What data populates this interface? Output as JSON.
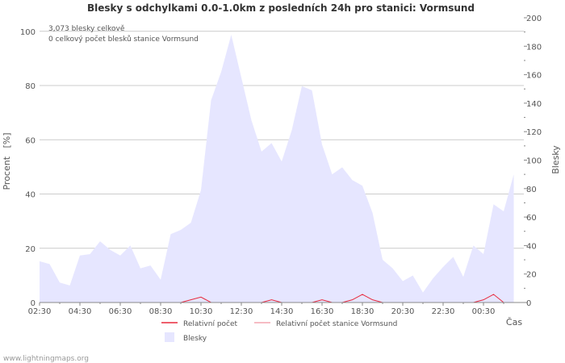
{
  "chart_data": {
    "type": "area",
    "title": "Blesky s odchylkami 0.0-1.0km z posledních 24h pro stanici: Vormsund",
    "annotations": [
      "3,073 blesky celkově",
      "0 celkový počet blesků stanice Vormsund"
    ],
    "left_axis": {
      "label": "Procent   [%]",
      "range": [
        0,
        105
      ],
      "ticks": [
        0,
        20,
        40,
        60,
        80,
        100
      ]
    },
    "right_axis": {
      "label": "Blesky",
      "range": [
        0,
        200
      ],
      "ticks": [
        0,
        20,
        40,
        60,
        80,
        100,
        120,
        140,
        160,
        180,
        200
      ]
    },
    "x_axis": {
      "label": "Čas",
      "range": [
        0,
        48
      ],
      "ticks": [
        {
          "x": 0,
          "label": "02:30"
        },
        {
          "x": 4,
          "label": "04:30"
        },
        {
          "x": 8,
          "label": "06:30"
        },
        {
          "x": 12,
          "label": "08:30"
        },
        {
          "x": 16,
          "label": "10:30"
        },
        {
          "x": 20,
          "label": "12:30"
        },
        {
          "x": 24,
          "label": "14:30"
        },
        {
          "x": 28,
          "label": "16:30"
        },
        {
          "x": 32,
          "label": "18:30"
        },
        {
          "x": 36,
          "label": "20:30"
        },
        {
          "x": 40,
          "label": "22:30"
        },
        {
          "x": 44,
          "label": "00:30"
        }
      ]
    },
    "series": [
      {
        "name": "Blesky",
        "axis": "right",
        "style": "area",
        "color": "#e6e6ff",
        "x": [
          0,
          1,
          2,
          3,
          4,
          5,
          6,
          7,
          8,
          9,
          10,
          11,
          12,
          13,
          14,
          15,
          16,
          17,
          18,
          19,
          20,
          21,
          22,
          23,
          24,
          25,
          26,
          27,
          28,
          29,
          30,
          31,
          32,
          33,
          34,
          35,
          36,
          37,
          38,
          39,
          40,
          41,
          42,
          43,
          44,
          45,
          46,
          47
        ],
        "values": [
          29,
          27,
          14,
          12,
          33,
          34,
          43,
          37,
          33,
          40,
          24,
          26,
          16,
          48,
          51,
          56,
          79,
          142,
          162,
          188,
          158,
          128,
          106,
          112,
          99,
          121,
          152,
          149,
          111,
          90,
          95,
          86,
          82,
          63,
          30,
          24,
          15,
          19,
          7,
          17,
          25,
          32,
          18,
          40,
          34,
          69,
          64,
          90
        ]
      },
      {
        "name": "Relativní počet",
        "axis": "left",
        "style": "line",
        "color": "#e8283c",
        "x": [
          14,
          15,
          16,
          17,
          22,
          23,
          24,
          27,
          28,
          29,
          30,
          31,
          32,
          33,
          34,
          43,
          44,
          45,
          46
        ],
        "values": [
          0,
          1,
          2,
          0,
          0,
          1,
          0,
          0,
          1,
          0,
          0,
          1,
          3,
          1,
          0,
          0,
          1,
          3,
          0
        ]
      },
      {
        "name": "Relativní počet stanice Vormsund",
        "axis": "left",
        "style": "line",
        "color": "#f4a6b0",
        "x": [],
        "values": []
      }
    ],
    "legend": [
      "Relativní počet",
      "Relativní počet stanice Vormsund",
      "Blesky"
    ],
    "grid": true
  },
  "footer": {
    "source": "www.lightningmaps.org"
  },
  "colors": {
    "area_fill": "#e6e6ff",
    "line_relative": "#e8283c",
    "line_station": "#f4a6b0",
    "grid": "#cccccc",
    "text": "#555555",
    "title": "#333333"
  }
}
